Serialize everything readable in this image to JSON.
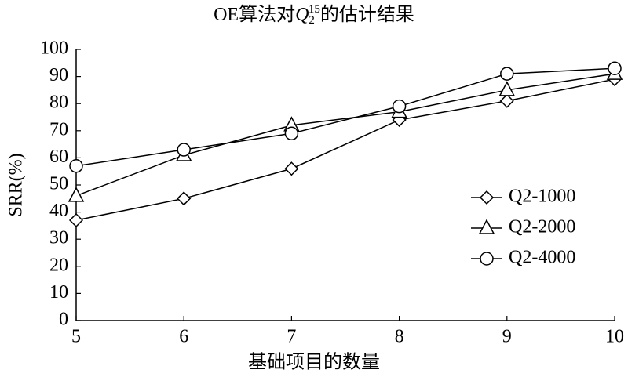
{
  "chart_data": {
    "type": "line",
    "title": {
      "before": "OE算法对",
      "symbol": "Q",
      "subscript": "2",
      "superscript": "15",
      "after": "的估计结果"
    },
    "x_label": "基础项目的数量",
    "y_label": "SRR(%)",
    "x": [
      5,
      6,
      7,
      8,
      9,
      10
    ],
    "series": [
      {
        "name": "Q2-1000",
        "color": "#000000",
        "marker": "diamond",
        "values": [
          37,
          45,
          56,
          74,
          81,
          89
        ]
      },
      {
        "name": "Q2-2000",
        "color": "#000000",
        "marker": "triangle",
        "values": [
          46,
          61,
          72,
          77,
          85,
          91
        ]
      },
      {
        "name": "Q2-4000",
        "color": "#000000",
        "marker": "circle",
        "values": [
          57,
          63,
          69,
          79,
          91,
          93
        ]
      }
    ],
    "xlim": [
      5,
      10
    ],
    "xticks": [
      5,
      6,
      7,
      8,
      9,
      10
    ],
    "ylim": [
      0,
      100
    ],
    "yticks": [
      0,
      10,
      20,
      30,
      40,
      50,
      60,
      70,
      80,
      90,
      100
    ],
    "grid": false,
    "legend": "center right"
  }
}
